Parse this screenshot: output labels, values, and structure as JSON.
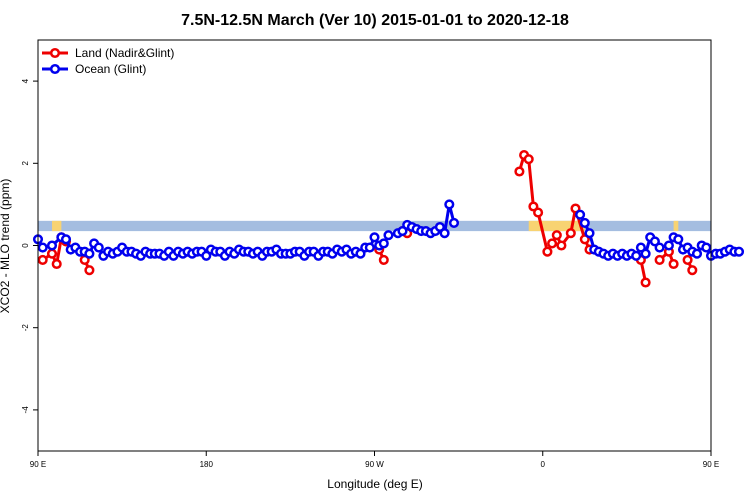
{
  "chart_data": {
    "type": "line",
    "title": "7.5N-12.5N March (Ver 10)   2015-01-01 to 2020-12-18",
    "xlabel": "Longitude (deg E)",
    "ylabel": "XCO2 - MLO trend (ppm)",
    "xlim": [
      -90,
      270
    ],
    "ylim": [
      -5,
      5
    ],
    "x_ticks": [
      {
        "value": -90,
        "label": "90 E"
      },
      {
        "value": 0,
        "label": "180"
      },
      {
        "value": 90,
        "label": "90 W"
      },
      {
        "value": 180,
        "label": "0"
      },
      {
        "value": 270,
        "label": "90 E"
      },
      {
        "value": 360,
        "label": "180"
      }
    ],
    "y_ticks": [
      {
        "value": -4,
        "label": "-4"
      },
      {
        "value": -2,
        "label": "-2"
      },
      {
        "value": 0,
        "label": "0"
      },
      {
        "value": 2,
        "label": "2"
      },
      {
        "value": 4,
        "label": "4"
      }
    ],
    "legend": {
      "position": "top-left",
      "entries": [
        {
          "name": "Land (Nadir&Glint)",
          "color": "#ee0000"
        },
        {
          "name": "Ocean (Glint)",
          "color": "#0000ee"
        }
      ]
    },
    "band": {
      "y_range": [
        0.35,
        0.6
      ],
      "ocean_color": "#a4bde0",
      "land_color": "#f8d372",
      "land_segments": [
        [
          -82.5,
          -77.5
        ],
        [
          172.5,
          202.5
        ],
        [
          250,
          252.5
        ]
      ]
    },
    "series": [
      {
        "name": "Land (Nadir&Glint)",
        "color": "#ee0000",
        "segments": [
          [
            [
              -87.5,
              -0.35
            ],
            [
              -82.5,
              -0.2
            ],
            [
              -80,
              -0.45
            ],
            [
              -77.5,
              0.2
            ],
            [
              -75,
              0.1
            ]
          ],
          [
            [
              -65,
              -0.35
            ],
            [
              -62.5,
              -0.6
            ]
          ],
          [
            [
              92.5,
              -0.1
            ],
            [
              95,
              -0.35
            ]
          ],
          [
            [
              105,
              0.35
            ],
            [
              107.5,
              0.3
            ]
          ],
          [
            [
              167.5,
              1.8
            ],
            [
              170,
              2.2
            ],
            [
              172.5,
              2.1
            ],
            [
              175,
              0.95
            ],
            [
              177.5,
              0.8
            ],
            [
              182.5,
              -0.15
            ],
            [
              185,
              0.05
            ],
            [
              187.5,
              0.25
            ],
            [
              190,
              0.0
            ],
            [
              195,
              0.3
            ],
            [
              197.5,
              0.9
            ],
            [
              202.5,
              0.15
            ],
            [
              205,
              -0.1
            ]
          ],
          [
            [
              232.5,
              -0.35
            ],
            [
              235,
              -0.9
            ]
          ],
          [
            [
              242.5,
              -0.35
            ],
            [
              247.5,
              -0.15
            ],
            [
              250,
              -0.45
            ]
          ],
          [
            [
              257.5,
              -0.35
            ],
            [
              260,
              -0.6
            ]
          ]
        ]
      },
      {
        "name": "Ocean (Glint)",
        "color": "#0000ee",
        "segments": [
          [
            [
              -90,
              0.15
            ],
            [
              -87.5,
              -0.05
            ],
            [
              -82.5,
              0.0
            ],
            [
              -77.5,
              0.2
            ],
            [
              -75,
              0.15
            ],
            [
              -72.5,
              -0.1
            ],
            [
              -70,
              -0.05
            ],
            [
              -67.5,
              -0.15
            ],
            [
              -65,
              -0.15
            ],
            [
              -62.5,
              -0.2
            ],
            [
              -60,
              0.05
            ],
            [
              -57.5,
              -0.05
            ],
            [
              -55,
              -0.25
            ],
            [
              -52.5,
              -0.15
            ],
            [
              -50,
              -0.2
            ],
            [
              -47.5,
              -0.15
            ],
            [
              -45,
              -0.05
            ],
            [
              -42.5,
              -0.15
            ],
            [
              -40,
              -0.15
            ],
            [
              -37.5,
              -0.2
            ],
            [
              -35,
              -0.25
            ],
            [
              -32.5,
              -0.15
            ],
            [
              -30,
              -0.2
            ],
            [
              -27.5,
              -0.2
            ],
            [
              -25,
              -0.2
            ],
            [
              -22.5,
              -0.25
            ],
            [
              -20,
              -0.15
            ],
            [
              -17.5,
              -0.25
            ],
            [
              -15,
              -0.15
            ],
            [
              -12.5,
              -0.2
            ],
            [
              -10,
              -0.15
            ],
            [
              -7.5,
              -0.2
            ],
            [
              -5,
              -0.15
            ],
            [
              -2.5,
              -0.15
            ],
            [
              0,
              -0.25
            ],
            [
              2.5,
              -0.1
            ],
            [
              5,
              -0.15
            ],
            [
              7.5,
              -0.15
            ],
            [
              10,
              -0.25
            ],
            [
              12.5,
              -0.15
            ],
            [
              15,
              -0.2
            ],
            [
              17.5,
              -0.1
            ],
            [
              20,
              -0.15
            ],
            [
              22.5,
              -0.15
            ],
            [
              25,
              -0.2
            ],
            [
              27.5,
              -0.15
            ],
            [
              30,
              -0.25
            ],
            [
              32.5,
              -0.15
            ],
            [
              35,
              -0.15
            ],
            [
              37.5,
              -0.1
            ],
            [
              40,
              -0.2
            ],
            [
              42.5,
              -0.2
            ],
            [
              45,
              -0.2
            ],
            [
              47.5,
              -0.15
            ],
            [
              50,
              -0.15
            ],
            [
              52.5,
              -0.25
            ],
            [
              55,
              -0.15
            ],
            [
              57.5,
              -0.15
            ],
            [
              60,
              -0.25
            ],
            [
              62.5,
              -0.15
            ],
            [
              65,
              -0.15
            ],
            [
              67.5,
              -0.2
            ],
            [
              70,
              -0.1
            ],
            [
              72.5,
              -0.15
            ],
            [
              75,
              -0.1
            ],
            [
              77.5,
              -0.2
            ],
            [
              80,
              -0.15
            ],
            [
              82.5,
              -0.2
            ],
            [
              85,
              -0.05
            ],
            [
              87.5,
              -0.05
            ],
            [
              90,
              0.2
            ],
            [
              92.5,
              0.0
            ],
            [
              95,
              0.05
            ],
            [
              97.5,
              0.25
            ],
            [
              102.5,
              0.3
            ],
            [
              105,
              0.35
            ],
            [
              107.5,
              0.5
            ],
            [
              110,
              0.45
            ],
            [
              112.5,
              0.4
            ],
            [
              115,
              0.35
            ],
            [
              117.5,
              0.35
            ],
            [
              120,
              0.3
            ],
            [
              122.5,
              0.35
            ],
            [
              125,
              0.45
            ],
            [
              127.5,
              0.3
            ],
            [
              130,
              1.0
            ],
            [
              132.5,
              0.55
            ]
          ],
          [
            [
              200,
              0.75
            ],
            [
              202.5,
              0.55
            ],
            [
              205,
              0.3
            ],
            [
              207.5,
              -0.1
            ],
            [
              210,
              -0.15
            ],
            [
              212.5,
              -0.2
            ],
            [
              215,
              -0.25
            ],
            [
              217.5,
              -0.2
            ],
            [
              220,
              -0.25
            ],
            [
              222.5,
              -0.2
            ],
            [
              225,
              -0.25
            ],
            [
              227.5,
              -0.2
            ],
            [
              230,
              -0.25
            ],
            [
              232.5,
              -0.05
            ],
            [
              235,
              -0.2
            ],
            [
              237.5,
              0.2
            ],
            [
              240,
              0.1
            ],
            [
              242.5,
              -0.05
            ],
            [
              247.5,
              0.0
            ],
            [
              250,
              0.2
            ],
            [
              252.5,
              0.15
            ],
            [
              255,
              -0.1
            ],
            [
              257.5,
              -0.05
            ],
            [
              260,
              -0.15
            ],
            [
              262.5,
              -0.2
            ],
            [
              265,
              0.0
            ],
            [
              267.5,
              -0.05
            ],
            [
              270,
              -0.25
            ],
            [
              272.5,
              -0.2
            ],
            [
              275,
              -0.2
            ],
            [
              277.5,
              -0.15
            ],
            [
              280,
              -0.1
            ],
            [
              282.5,
              -0.15
            ],
            [
              285,
              -0.15
            ]
          ]
        ]
      }
    ]
  }
}
